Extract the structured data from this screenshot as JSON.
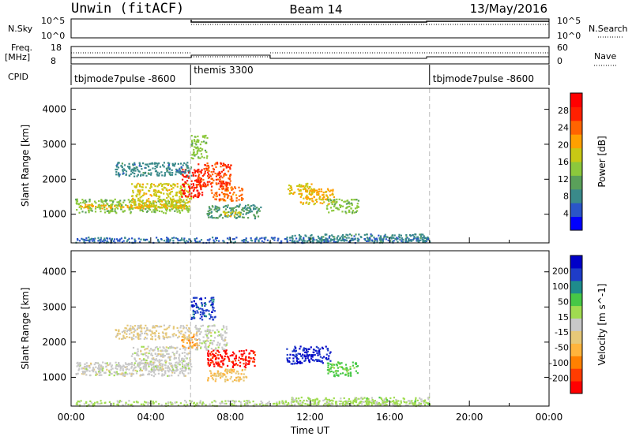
{
  "header": {
    "left": "Unwin (fitACF)",
    "center": "Beam 14",
    "right": "13/May/2016"
  },
  "top_panels": {
    "nsky_label": "N.Sky",
    "nsky_ticks": [
      "10^5",
      "10^0"
    ],
    "nsky_right_ticks": [
      "10^5",
      "10^0"
    ],
    "nsearch_label": "N.Search",
    "freq_label_1": "Freq.",
    "freq_label_2": "[MHz]",
    "freq_ticks": [
      "18",
      "8"
    ],
    "nave_ticks": [
      "60",
      "0"
    ],
    "nave_label": "Nave",
    "cpid_label": "CPID",
    "cpid_segments": [
      {
        "name": "tbjmode7pulse -8600",
        "start": 0,
        "end": 6
      },
      {
        "name": "themis 3300",
        "start": 6,
        "end": 18
      },
      {
        "name": "tbjmode7pulse -8600",
        "start": 18,
        "end": 24
      }
    ]
  },
  "colors": {
    "power_scale": [
      "#0000ff",
      "#2a55c8",
      "#3a8a8a",
      "#5aa05a",
      "#8cc83c",
      "#c8c814",
      "#ffa000",
      "#ff6400",
      "#ff2000",
      "#ff0000"
    ],
    "velocity_scale": [
      "#ff0000",
      "#ff3c00",
      "#ff8000",
      "#ffb43c",
      "#e6c878",
      "#c8c8c8",
      "#a0dc50",
      "#46c846",
      "#1e8c8c",
      "#1e3cc8",
      "#0000c8"
    ]
  },
  "chart_data": [
    {
      "type": "heatmap",
      "panel": "power",
      "xlabel": "",
      "ylabel": "Slant Range [km]",
      "xlim": [
        0,
        24
      ],
      "ylim": [
        180,
        4600
      ],
      "yticks": [
        1000,
        2000,
        3000,
        4000
      ],
      "colorbar_label": "Power [dB]",
      "colorbar_ticks": [
        4,
        8,
        12,
        16,
        20,
        24,
        28
      ],
      "colorbar_range": [
        0,
        32
      ],
      "mode_boundaries": [
        6,
        18
      ],
      "regions": [
        {
          "t0": 0.2,
          "t1": 5.9,
          "r0": 1050,
          "r1": 1450,
          "v": 14
        },
        {
          "t0": 0.4,
          "t1": 5.8,
          "r0": 1180,
          "r1": 1320,
          "v": 20
        },
        {
          "t0": 3.0,
          "t1": 6.0,
          "r0": 1200,
          "r1": 1900,
          "v": 18
        },
        {
          "t0": 5.5,
          "t1": 6.6,
          "r0": 1500,
          "r1": 2300,
          "v": 28
        },
        {
          "t0": 6.2,
          "t1": 8.0,
          "r0": 1800,
          "r1": 2500,
          "v": 26
        },
        {
          "t0": 7.0,
          "t1": 8.6,
          "r0": 1400,
          "r1": 1800,
          "v": 24
        },
        {
          "t0": 6.8,
          "t1": 9.5,
          "r0": 900,
          "r1": 1300,
          "v": 10
        },
        {
          "t0": 7.5,
          "t1": 8.5,
          "r0": 950,
          "r1": 1100,
          "v": 18
        },
        {
          "t0": 10.8,
          "t1": 12.2,
          "r0": 1600,
          "r1": 1900,
          "v": 18
        },
        {
          "t0": 11.4,
          "t1": 13.2,
          "r0": 1300,
          "r1": 1750,
          "v": 20
        },
        {
          "t0": 12.8,
          "t1": 14.4,
          "r0": 1050,
          "r1": 1450,
          "v": 14
        },
        {
          "t0": 2.2,
          "t1": 6.0,
          "r0": 2100,
          "r1": 2500,
          "v": 8
        },
        {
          "t0": 6.0,
          "t1": 6.8,
          "r0": 2600,
          "r1": 3300,
          "v": 14
        },
        {
          "t0": 0.2,
          "t1": 18.0,
          "r0": 200,
          "r1": 360,
          "v": 6
        },
        {
          "t0": 11.0,
          "t1": 18.0,
          "r0": 230,
          "r1": 450,
          "v": 8
        }
      ]
    },
    {
      "type": "heatmap",
      "panel": "velocity",
      "xlabel": "Time UT",
      "ylabel": "Slant Range [km]",
      "xlim": [
        0,
        24
      ],
      "ylim": [
        180,
        4600
      ],
      "yticks": [
        1000,
        2000,
        3000,
        4000
      ],
      "xticks": [
        "00:00",
        "04:00",
        "08:00",
        "12:00",
        "16:00",
        "20:00",
        "00:00"
      ],
      "colorbar_label": "Velocity [m s^-1]",
      "colorbar_ticks": [
        -200,
        -100,
        -50,
        -15,
        15,
        50,
        100,
        200
      ],
      "colorbar_range": [
        -250,
        250
      ],
      "mode_boundaries": [
        6,
        18
      ],
      "regions": [
        {
          "t0": 0.2,
          "t1": 5.9,
          "r0": 1050,
          "r1": 1450,
          "v": 0
        },
        {
          "t0": 3.0,
          "t1": 6.0,
          "r0": 1200,
          "r1": 1900,
          "v": 0
        },
        {
          "t0": 5.5,
          "t1": 6.3,
          "r0": 1850,
          "r1": 2250,
          "v": -120
        },
        {
          "t0": 6.2,
          "t1": 7.8,
          "r0": 1800,
          "r1": 2500,
          "v": 5
        },
        {
          "t0": 6.8,
          "t1": 9.2,
          "r0": 1300,
          "r1": 1800,
          "v": -220
        },
        {
          "t0": 6.8,
          "t1": 8.8,
          "r0": 900,
          "r1": 1250,
          "v": -70
        },
        {
          "t0": 6.0,
          "t1": 7.2,
          "r0": 2650,
          "r1": 3300,
          "v": 180
        },
        {
          "t0": 10.8,
          "t1": 13.0,
          "r0": 1400,
          "r1": 1900,
          "v": 210
        },
        {
          "t0": 12.8,
          "t1": 14.4,
          "r0": 1050,
          "r1": 1450,
          "v": 80
        },
        {
          "t0": 2.2,
          "t1": 6.0,
          "r0": 2100,
          "r1": 2500,
          "v": -30
        },
        {
          "t0": 0.2,
          "t1": 18.0,
          "r0": 200,
          "r1": 360,
          "v": 30
        },
        {
          "t0": 11.0,
          "t1": 18.0,
          "r0": 230,
          "r1": 450,
          "v": 40
        }
      ]
    }
  ]
}
